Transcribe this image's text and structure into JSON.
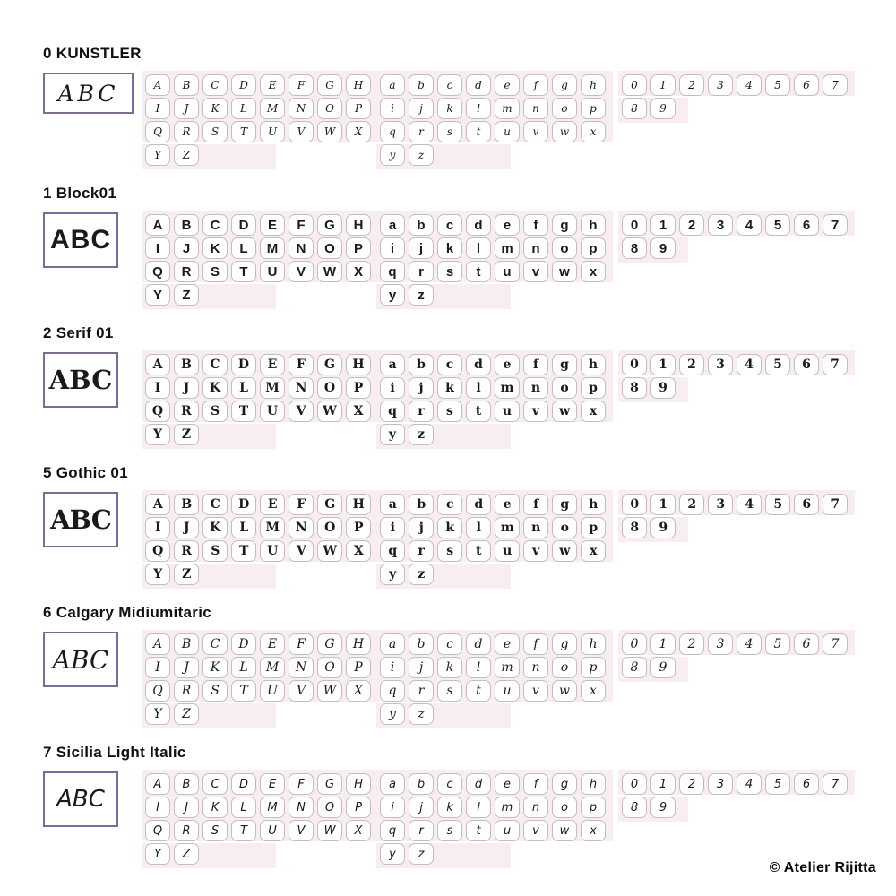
{
  "page": {
    "footer": {
      "copyright": "© Atelier Rijitta"
    }
  },
  "colors": {
    "pink_bg": "#f8edf2",
    "tile_bg": "#ffffff",
    "tile_border": "#c5bcc2",
    "preview_border": "#7d6b94",
    "heading_text": "#111111",
    "glyph_text": "#1a1a1a"
  },
  "charsets": {
    "uppercase": [
      [
        "A",
        "B",
        "C",
        "D",
        "E",
        "F",
        "G",
        "H"
      ],
      [
        "I",
        "J",
        "K",
        "L",
        "M",
        "N",
        "O",
        "P"
      ],
      [
        "Q",
        "R",
        "S",
        "T",
        "U",
        "V",
        "W",
        "X"
      ],
      [
        "Y",
        "Z"
      ]
    ],
    "lowercase": [
      [
        "a",
        "b",
        "c",
        "d",
        "e",
        "f",
        "g",
        "h"
      ],
      [
        "i",
        "j",
        "k",
        "l",
        "m",
        "n",
        "o",
        "p"
      ],
      [
        "q",
        "r",
        "s",
        "t",
        "u",
        "v",
        "w",
        "x"
      ],
      [
        "y",
        "z"
      ]
    ],
    "digits": [
      [
        "0",
        "1",
        "2",
        "3",
        "4",
        "5",
        "6",
        "7"
      ],
      [
        "8",
        "9"
      ]
    ]
  },
  "sections": [
    {
      "id": "kunstler",
      "title": "0 KUNSTLER",
      "preview": "ABC",
      "style": "copperplate-script"
    },
    {
      "id": "block01",
      "title": "1 Block01",
      "preview": "ABC",
      "style": "bold-block-sans"
    },
    {
      "id": "serif01",
      "title": "2 Serif 01",
      "preview": "ABC",
      "style": "slab-serif"
    },
    {
      "id": "gothic01",
      "title": "5 Gothic 01",
      "preview": "ABC",
      "style": "blackletter"
    },
    {
      "id": "calgary",
      "title": "6 Calgary Midiumitaric",
      "preview": "ABC",
      "style": "calligraphic-italic"
    },
    {
      "id": "sicilia",
      "title": "7 Sicilia Light Italic",
      "preview": "ABC",
      "style": "casual-light-italic"
    }
  ]
}
